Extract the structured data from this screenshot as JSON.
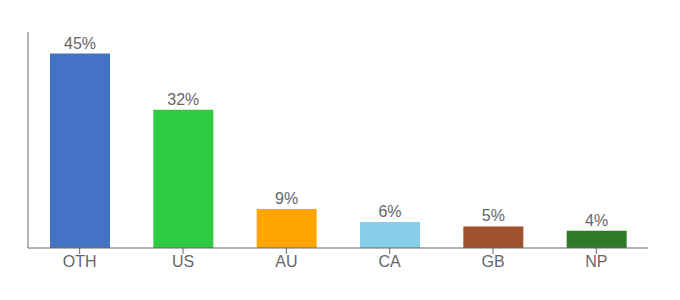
{
  "chart_data": {
    "type": "bar",
    "categories": [
      "OTH",
      "US",
      "AU",
      "CA",
      "GB",
      "NP"
    ],
    "values": [
      45,
      32,
      9,
      6,
      5,
      4
    ],
    "value_labels": [
      "45%",
      "32%",
      "9%",
      "6%",
      "5%",
      "4%"
    ],
    "colors": [
      "#4472C4",
      "#2ECC40",
      "#FFA500",
      "#87CEEB",
      "#A0522D",
      "#2D7A27"
    ],
    "ylim": [
      0,
      50
    ],
    "data_labels": true,
    "grid": false,
    "tick_labels": "x"
  }
}
